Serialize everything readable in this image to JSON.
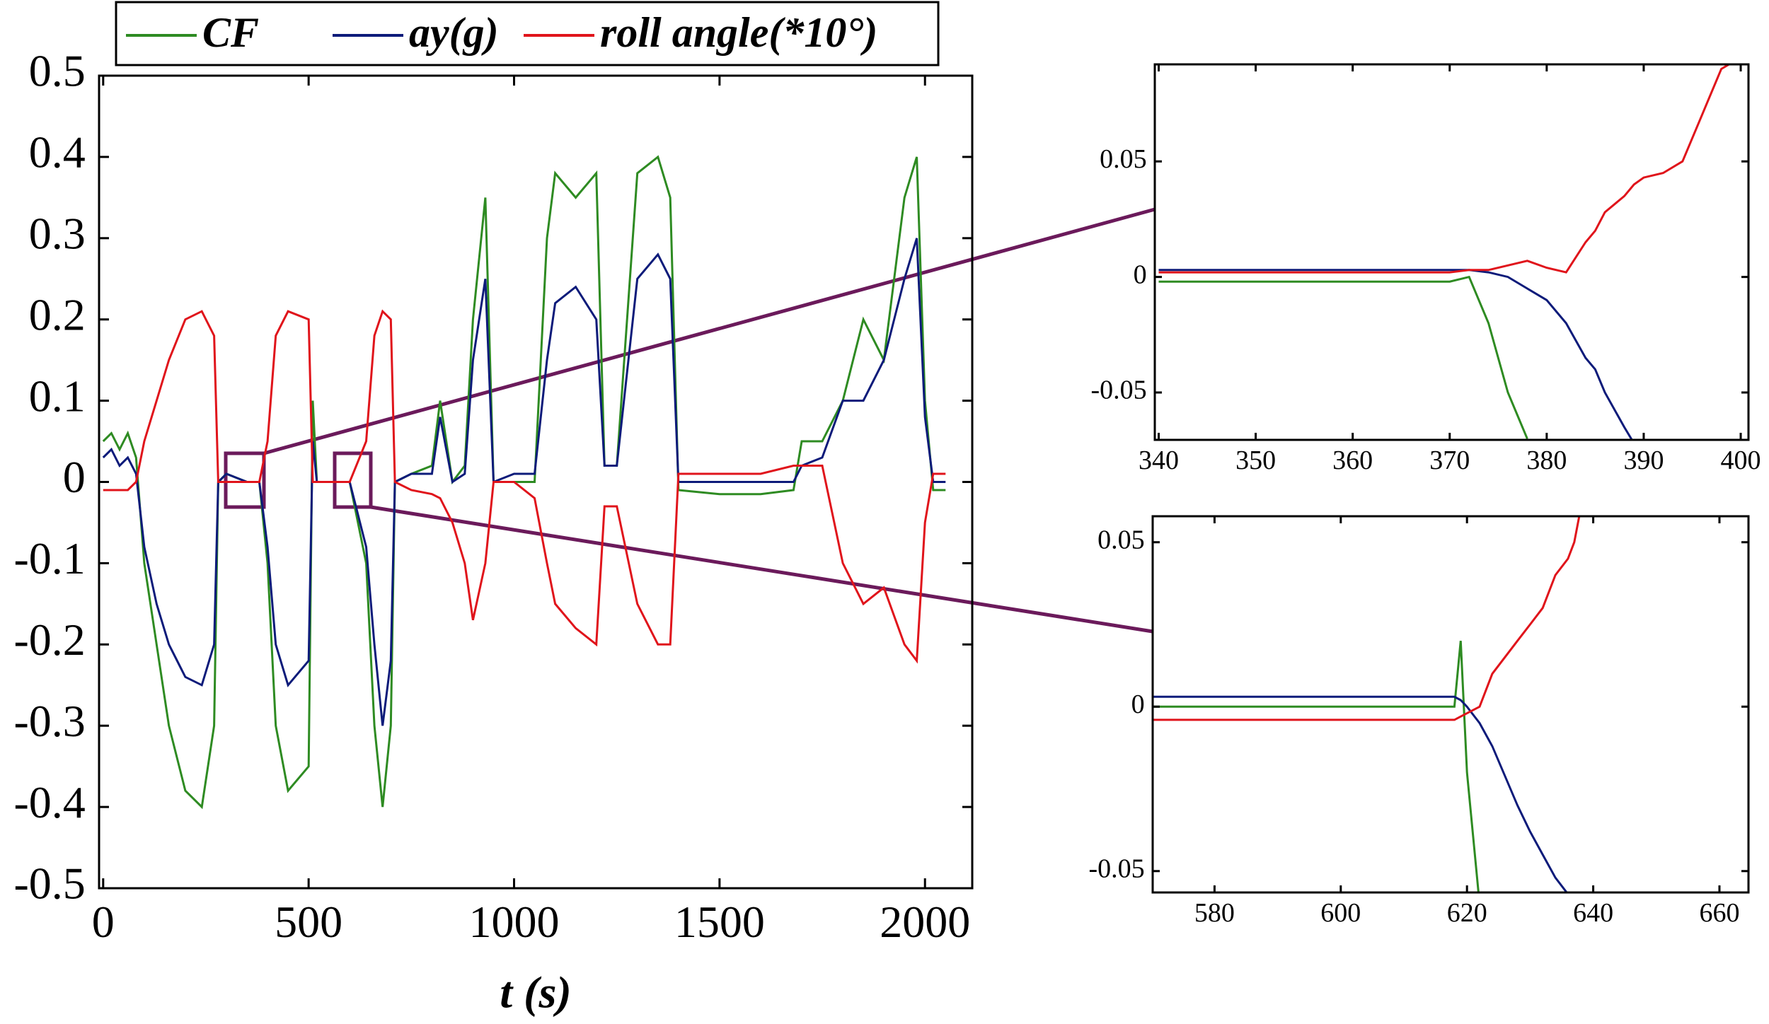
{
  "chart_data": [
    {
      "type": "line",
      "x_label": "t (s)",
      "x": [
        0,
        20,
        40,
        60,
        80,
        100,
        130,
        160,
        200,
        240,
        270,
        280,
        300,
        350,
        380,
        400,
        420,
        450,
        500,
        510,
        520,
        550,
        600,
        640,
        660,
        680,
        700,
        710,
        750,
        800,
        820,
        850,
        880,
        900,
        930,
        950,
        1000,
        1050,
        1080,
        1100,
        1150,
        1200,
        1220,
        1250,
        1300,
        1350,
        1380,
        1400,
        1500,
        1600,
        1680,
        1700,
        1750,
        1800,
        1850,
        1900,
        1950,
        1980,
        2000,
        2020,
        2050
      ],
      "series": [
        {
          "name": "CF",
          "color": "#2e8b22",
          "values": [
            0.05,
            0.06,
            0.04,
            0.06,
            0.03,
            -0.1,
            -0.2,
            -0.3,
            -0.38,
            -0.4,
            -0.3,
            0.0,
            0.01,
            0.0,
            0.0,
            -0.1,
            -0.3,
            -0.38,
            -0.35,
            0.1,
            0.0,
            0.0,
            0.0,
            -0.1,
            -0.3,
            -0.4,
            -0.3,
            0.0,
            0.01,
            0.02,
            0.1,
            0.0,
            0.02,
            0.2,
            0.35,
            0.0,
            0.0,
            0.0,
            0.3,
            0.38,
            0.35,
            0.38,
            0.02,
            0.02,
            0.38,
            0.4,
            0.35,
            -0.01,
            -0.015,
            -0.015,
            -0.01,
            0.05,
            0.05,
            0.1,
            0.2,
            0.15,
            0.35,
            0.4,
            0.1,
            -0.01,
            -0.01
          ]
        },
        {
          "name": "ay(g)",
          "color": "#0d1b7a",
          "values": [
            0.03,
            0.04,
            0.02,
            0.03,
            0.01,
            -0.08,
            -0.15,
            -0.2,
            -0.24,
            -0.25,
            -0.2,
            0.0,
            0.01,
            0.0,
            0.0,
            -0.08,
            -0.2,
            -0.25,
            -0.22,
            0.05,
            0.0,
            0.0,
            0.0,
            -0.08,
            -0.2,
            -0.3,
            -0.22,
            0.0,
            0.01,
            0.01,
            0.08,
            0.0,
            0.01,
            0.15,
            0.25,
            0.0,
            0.01,
            0.01,
            0.15,
            0.22,
            0.24,
            0.2,
            0.02,
            0.02,
            0.25,
            0.28,
            0.25,
            0.0,
            0.0,
            0.0,
            0.0,
            0.02,
            0.03,
            0.1,
            0.1,
            0.15,
            0.25,
            0.3,
            0.08,
            0.0,
            0.0
          ]
        },
        {
          "name": "roll angle(*10°)",
          "color": "#e0141b",
          "values": [
            -0.01,
            -0.01,
            -0.01,
            -0.01,
            0.0,
            0.05,
            0.1,
            0.15,
            0.2,
            0.21,
            0.18,
            0.0,
            0.0,
            0.0,
            0.0,
            0.05,
            0.18,
            0.21,
            0.2,
            0.0,
            0.0,
            0.0,
            0.0,
            0.05,
            0.18,
            0.21,
            0.2,
            0.0,
            -0.01,
            -0.015,
            -0.02,
            -0.05,
            -0.1,
            -0.17,
            -0.1,
            0.0,
            0.0,
            -0.02,
            -0.1,
            -0.15,
            -0.18,
            -0.2,
            -0.03,
            -0.03,
            -0.15,
            -0.2,
            -0.2,
            0.01,
            0.01,
            0.01,
            0.02,
            0.02,
            0.02,
            -0.1,
            -0.15,
            -0.13,
            -0.2,
            -0.22,
            -0.05,
            0.01,
            0.01
          ]
        }
      ],
      "xlim": [
        -10,
        2115
      ],
      "ylim": [
        -0.5,
        0.5
      ],
      "xticks": [
        0,
        500,
        1000,
        1500,
        2000
      ],
      "yticks": [
        -0.5,
        -0.4,
        -0.3,
        -0.2,
        -0.1,
        0,
        0.1,
        0.2,
        0.3,
        0.4,
        0.5
      ]
    },
    {
      "type": "line",
      "x": [
        340,
        350,
        360,
        370,
        372,
        374,
        376,
        378,
        380,
        382,
        384,
        385,
        386,
        388,
        389,
        390,
        392,
        394,
        396,
        398,
        400
      ],
      "series": [
        {
          "color": "#2e8b22",
          "values": [
            -0.002,
            -0.002,
            -0.002,
            -0.002,
            0.0,
            -0.02,
            -0.05,
            -0.07,
            null,
            null,
            null,
            null,
            null,
            null,
            null,
            null,
            null,
            null,
            null,
            null,
            null
          ]
        },
        {
          "color": "#0d1b7a",
          "values": [
            0.003,
            0.003,
            0.003,
            0.003,
            0.003,
            0.002,
            0.0,
            -0.005,
            -0.01,
            -0.02,
            -0.035,
            -0.04,
            -0.05,
            -0.065,
            -0.072,
            null,
            null,
            null,
            null,
            null,
            null
          ]
        },
        {
          "color": "#e0141b",
          "values": [
            0.002,
            0.002,
            0.002,
            0.002,
            0.003,
            0.003,
            0.005,
            0.007,
            0.004,
            0.002,
            0.015,
            0.02,
            0.028,
            0.035,
            0.04,
            0.043,
            0.045,
            0.05,
            0.07,
            0.09,
            0.095
          ]
        }
      ],
      "xlim": [
        339.6,
        400.8
      ],
      "ylim": [
        -0.0705,
        0.092
      ],
      "xticks": [
        340,
        350,
        360,
        370,
        380,
        390,
        400
      ],
      "yticks": [
        -0.05,
        0,
        0.05
      ]
    },
    {
      "type": "line",
      "x": [
        570,
        580,
        590,
        600,
        610,
        618,
        619,
        620,
        622,
        624,
        628,
        630,
        632,
        634,
        636,
        637,
        638
      ],
      "series": [
        {
          "color": "#2e8b22",
          "values": [
            0.0,
            0.0,
            0.0,
            0.0,
            0.0,
            0.0,
            0.02,
            -0.02,
            -0.06,
            null,
            null,
            null,
            null,
            null,
            null,
            null,
            null
          ]
        },
        {
          "color": "#0d1b7a",
          "values": [
            0.003,
            0.003,
            0.003,
            0.003,
            0.003,
            0.003,
            0.002,
            0.0,
            -0.005,
            -0.012,
            -0.03,
            -0.038,
            -0.045,
            -0.052,
            -0.057,
            null,
            null
          ]
        },
        {
          "color": "#e0141b",
          "values": [
            -0.004,
            -0.004,
            -0.004,
            -0.004,
            -0.004,
            -0.004,
            -0.003,
            -0.002,
            0.0,
            0.01,
            0.02,
            0.025,
            0.03,
            0.04,
            0.045,
            0.05,
            0.06
          ]
        }
      ],
      "xlim": [
        570.2,
        664.6
      ],
      "ylim": [
        -0.0565,
        0.0579
      ],
      "xticks": [
        580,
        600,
        620,
        640,
        660
      ],
      "yticks": [
        -0.05,
        0,
        0.05
      ]
    }
  ]
}
